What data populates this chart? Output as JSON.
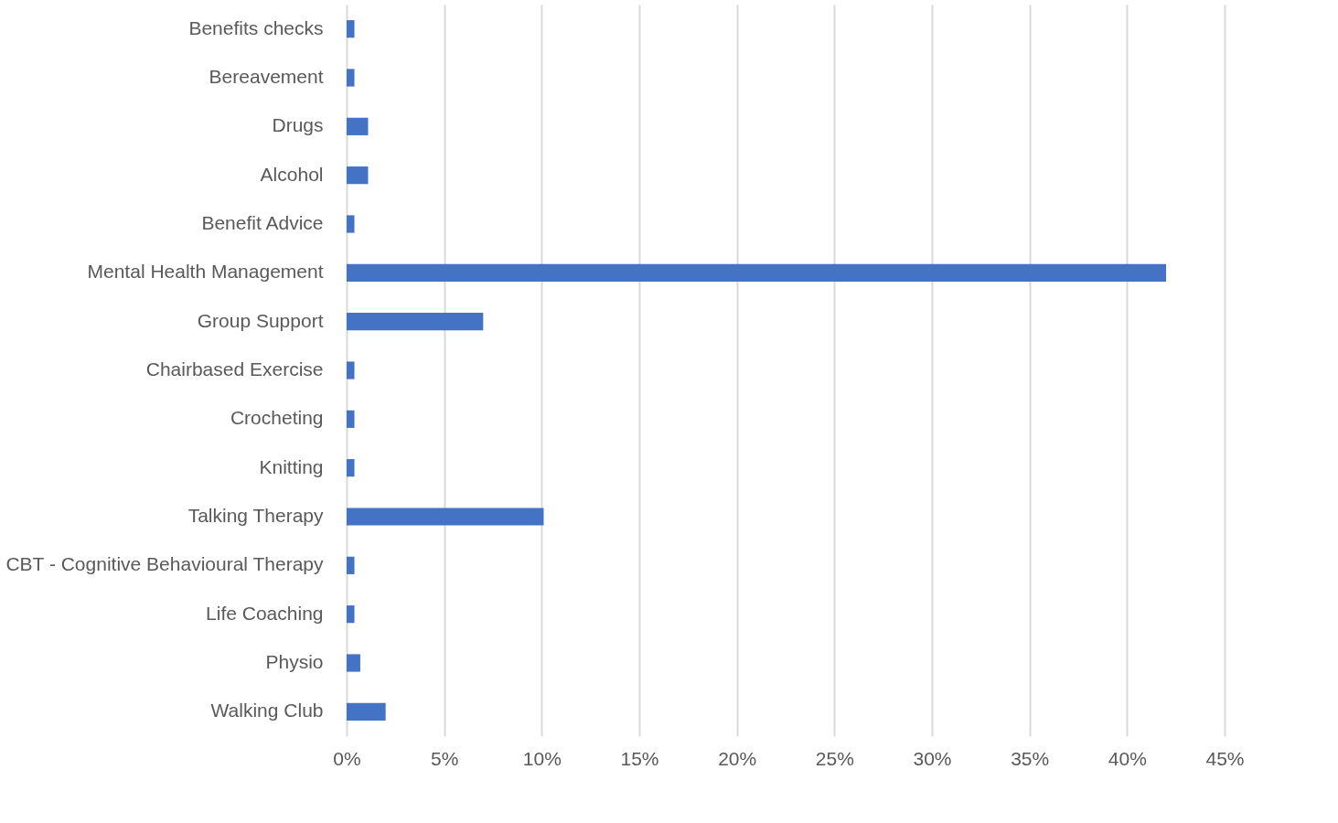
{
  "chart_data": {
    "type": "bar",
    "orientation": "horizontal",
    "categories": [
      "Benefits checks",
      "Bereavement",
      "Drugs",
      "Alcohol",
      "Benefit Advice",
      "Mental Health Management",
      "Group Support",
      "Chairbased Exercise",
      "Crocheting",
      "Knitting",
      "Talking Therapy",
      "CBT - Cognitive Behavioural Therapy",
      "Life Coaching",
      "Physio",
      "Walking Club"
    ],
    "values": [
      0.4,
      0.4,
      1.1,
      1.1,
      0.4,
      42.0,
      7.0,
      0.4,
      0.4,
      0.4,
      10.1,
      0.4,
      0.4,
      0.7,
      2.0
    ],
    "color": "#4472c4",
    "xlim": [
      0,
      45
    ],
    "xticks": [
      {
        "value": 0,
        "label": "0%"
      },
      {
        "value": 5,
        "label": "5%"
      },
      {
        "value": 10,
        "label": "10%"
      },
      {
        "value": 15,
        "label": "15%"
      },
      {
        "value": 20,
        "label": "20%"
      },
      {
        "value": 25,
        "label": "25%"
      },
      {
        "value": 30,
        "label": "30%"
      },
      {
        "value": 35,
        "label": "35%"
      },
      {
        "value": 40,
        "label": "40%"
      },
      {
        "value": 45,
        "label": "45%"
      }
    ],
    "grid": "x"
  }
}
